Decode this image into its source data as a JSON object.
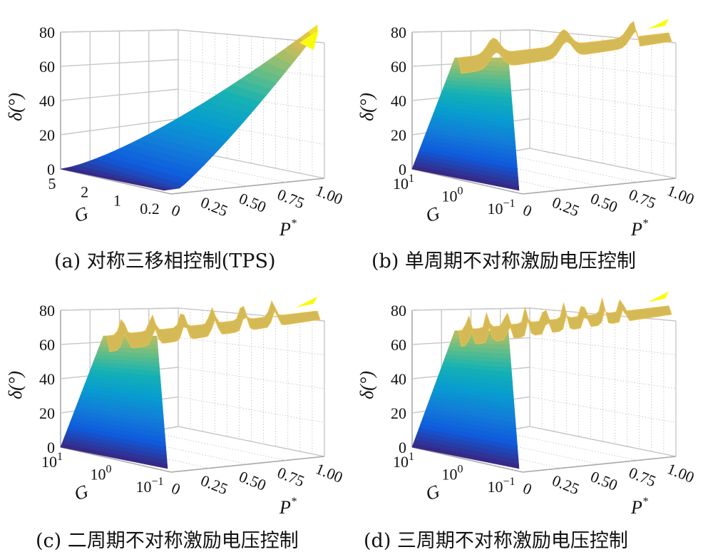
{
  "chart_data": [
    {
      "type": "surface",
      "caption": "(a) 对称三移相控制(TPS)",
      "zlabel": "δ(°)",
      "ylabel": "G",
      "xlabel": "P*",
      "z_ticks": [
        "0",
        "20",
        "40",
        "60",
        "80"
      ],
      "g_ticks": [
        "5",
        "2",
        "1",
        "0.2"
      ],
      "p_ticks": [
        "0",
        "0.25",
        "0.50",
        "0.75",
        "1.00"
      ],
      "zlim": [
        0,
        80
      ],
      "xlim": [
        0,
        1
      ],
      "g_scale": "linear",
      "colormap": "parula",
      "surface_type": "smooth",
      "delta_at_max_power": 80
    },
    {
      "type": "surface",
      "caption": "(b) 单周期不对称激励电压控制",
      "zlabel": "δ(°)",
      "ylabel": "G",
      "xlabel": "P*",
      "z_ticks": [
        "0",
        "20",
        "40",
        "60",
        "80"
      ],
      "g_ticks": [
        "10",
        "10",
        "10"
      ],
      "g_tick_exponents": [
        "1",
        "0",
        "−1"
      ],
      "p_ticks": [
        "0",
        "0.25",
        "0.50",
        "0.75",
        "1.00"
      ],
      "zlim": [
        0,
        80
      ],
      "xlim": [
        0,
        1
      ],
      "g_scale": "log",
      "colormap": "parula",
      "surface_type": "spiky",
      "plateau_delta": 65,
      "spike_count": 3
    },
    {
      "type": "surface",
      "caption": "(c) 二周期不对称激励电压控制",
      "zlabel": "δ(°)",
      "ylabel": "G",
      "xlabel": "P*",
      "z_ticks": [
        "0",
        "20",
        "40",
        "60",
        "80"
      ],
      "g_ticks": [
        "10",
        "10",
        "10"
      ],
      "g_tick_exponents": [
        "1",
        "0",
        "−1"
      ],
      "p_ticks": [
        "0",
        "0.25",
        "0.50",
        "0.75",
        "1.00"
      ],
      "zlim": [
        0,
        80
      ],
      "xlim": [
        0,
        1
      ],
      "g_scale": "log",
      "colormap": "parula",
      "surface_type": "spiky",
      "plateau_delta": 65,
      "spike_count": 7
    },
    {
      "type": "surface",
      "caption": "(d) 三周期不对称激励电压控制",
      "zlabel": "δ(°)",
      "ylabel": "G",
      "xlabel": "P*",
      "z_ticks": [
        "0",
        "20",
        "40",
        "60",
        "80"
      ],
      "g_ticks": [
        "10",
        "10",
        "10"
      ],
      "g_tick_exponents": [
        "1",
        "0",
        "−1"
      ],
      "p_ticks": [
        "0",
        "0.25",
        "0.50",
        "0.75",
        "1.00"
      ],
      "zlim": [
        0,
        80
      ],
      "xlim": [
        0,
        1
      ],
      "g_scale": "log",
      "colormap": "parula",
      "surface_type": "spiky",
      "plateau_delta": 68,
      "spike_count": 11
    }
  ]
}
